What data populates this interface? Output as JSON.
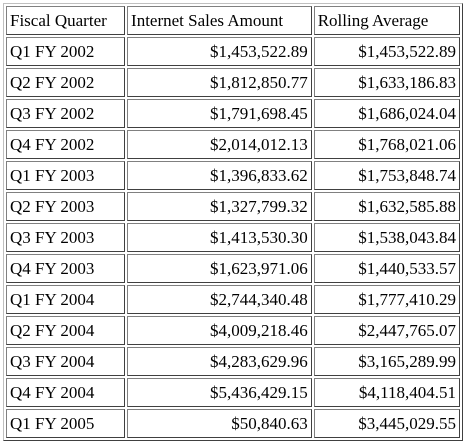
{
  "table": {
    "headers": [
      "Fiscal Quarter",
      "Internet Sales Amount",
      "Rolling Average"
    ],
    "rows": [
      [
        "Q1 FY 2002",
        "$1,453,522.89",
        "$1,453,522.89"
      ],
      [
        "Q2 FY 2002",
        "$1,812,850.77",
        "$1,633,186.83"
      ],
      [
        "Q3 FY 2002",
        "$1,791,698.45",
        "$1,686,024.04"
      ],
      [
        "Q4 FY 2002",
        "$2,014,012.13",
        "$1,768,021.06"
      ],
      [
        "Q1 FY 2003",
        "$1,396,833.62",
        "$1,753,848.74"
      ],
      [
        "Q2 FY 2003",
        "$1,327,799.32",
        "$1,632,585.88"
      ],
      [
        "Q3 FY 2003",
        "$1,413,530.30",
        "$1,538,043.84"
      ],
      [
        "Q4 FY 2003",
        "$1,623,971.06",
        "$1,440,533.57"
      ],
      [
        "Q1 FY 2004",
        "$2,744,340.48",
        "$1,777,410.29"
      ],
      [
        "Q2 FY 2004",
        "$4,009,218.46",
        "$2,447,765.07"
      ],
      [
        "Q3 FY 2004",
        "$4,283,629.96",
        "$3,165,289.99"
      ],
      [
        "Q4 FY 2004",
        "$5,436,429.15",
        "$4,118,404.51"
      ],
      [
        "Q1 FY 2005",
        "$50,840.63",
        "$3,445,029.55"
      ]
    ]
  }
}
